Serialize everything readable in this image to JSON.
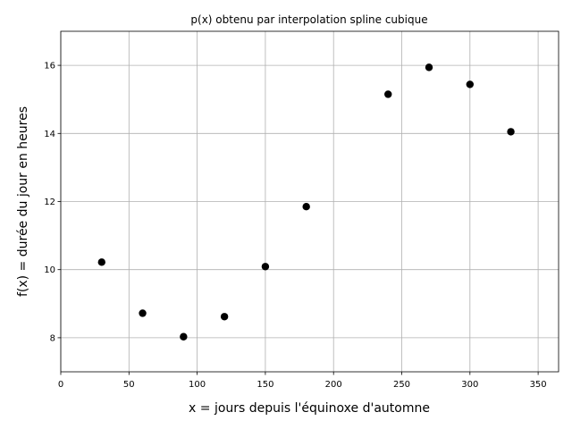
{
  "chart_data": {
    "type": "scatter",
    "title": "p(x) obtenu par interpolation spline cubique",
    "xlabel": "x = jours depuis l'équinoxe d'automne",
    "ylabel": "f(x) = durée du jour en heures",
    "xlim": [
      0,
      365
    ],
    "ylim": [
      7,
      17
    ],
    "xticks": [
      0,
      50,
      100,
      150,
      200,
      250,
      300,
      350
    ],
    "yticks": [
      8,
      10,
      12,
      14,
      16
    ],
    "grid": true,
    "point_color": "#000000",
    "points": [
      {
        "x": 30,
        "y": 10.22
      },
      {
        "x": 60,
        "y": 8.72
      },
      {
        "x": 90,
        "y": 8.03
      },
      {
        "x": 120,
        "y": 8.62
      },
      {
        "x": 150,
        "y": 10.09
      },
      {
        "x": 180,
        "y": 11.85
      },
      {
        "x": 240,
        "y": 15.15
      },
      {
        "x": 270,
        "y": 15.94
      },
      {
        "x": 300,
        "y": 15.44
      },
      {
        "x": 330,
        "y": 14.05
      }
    ]
  }
}
